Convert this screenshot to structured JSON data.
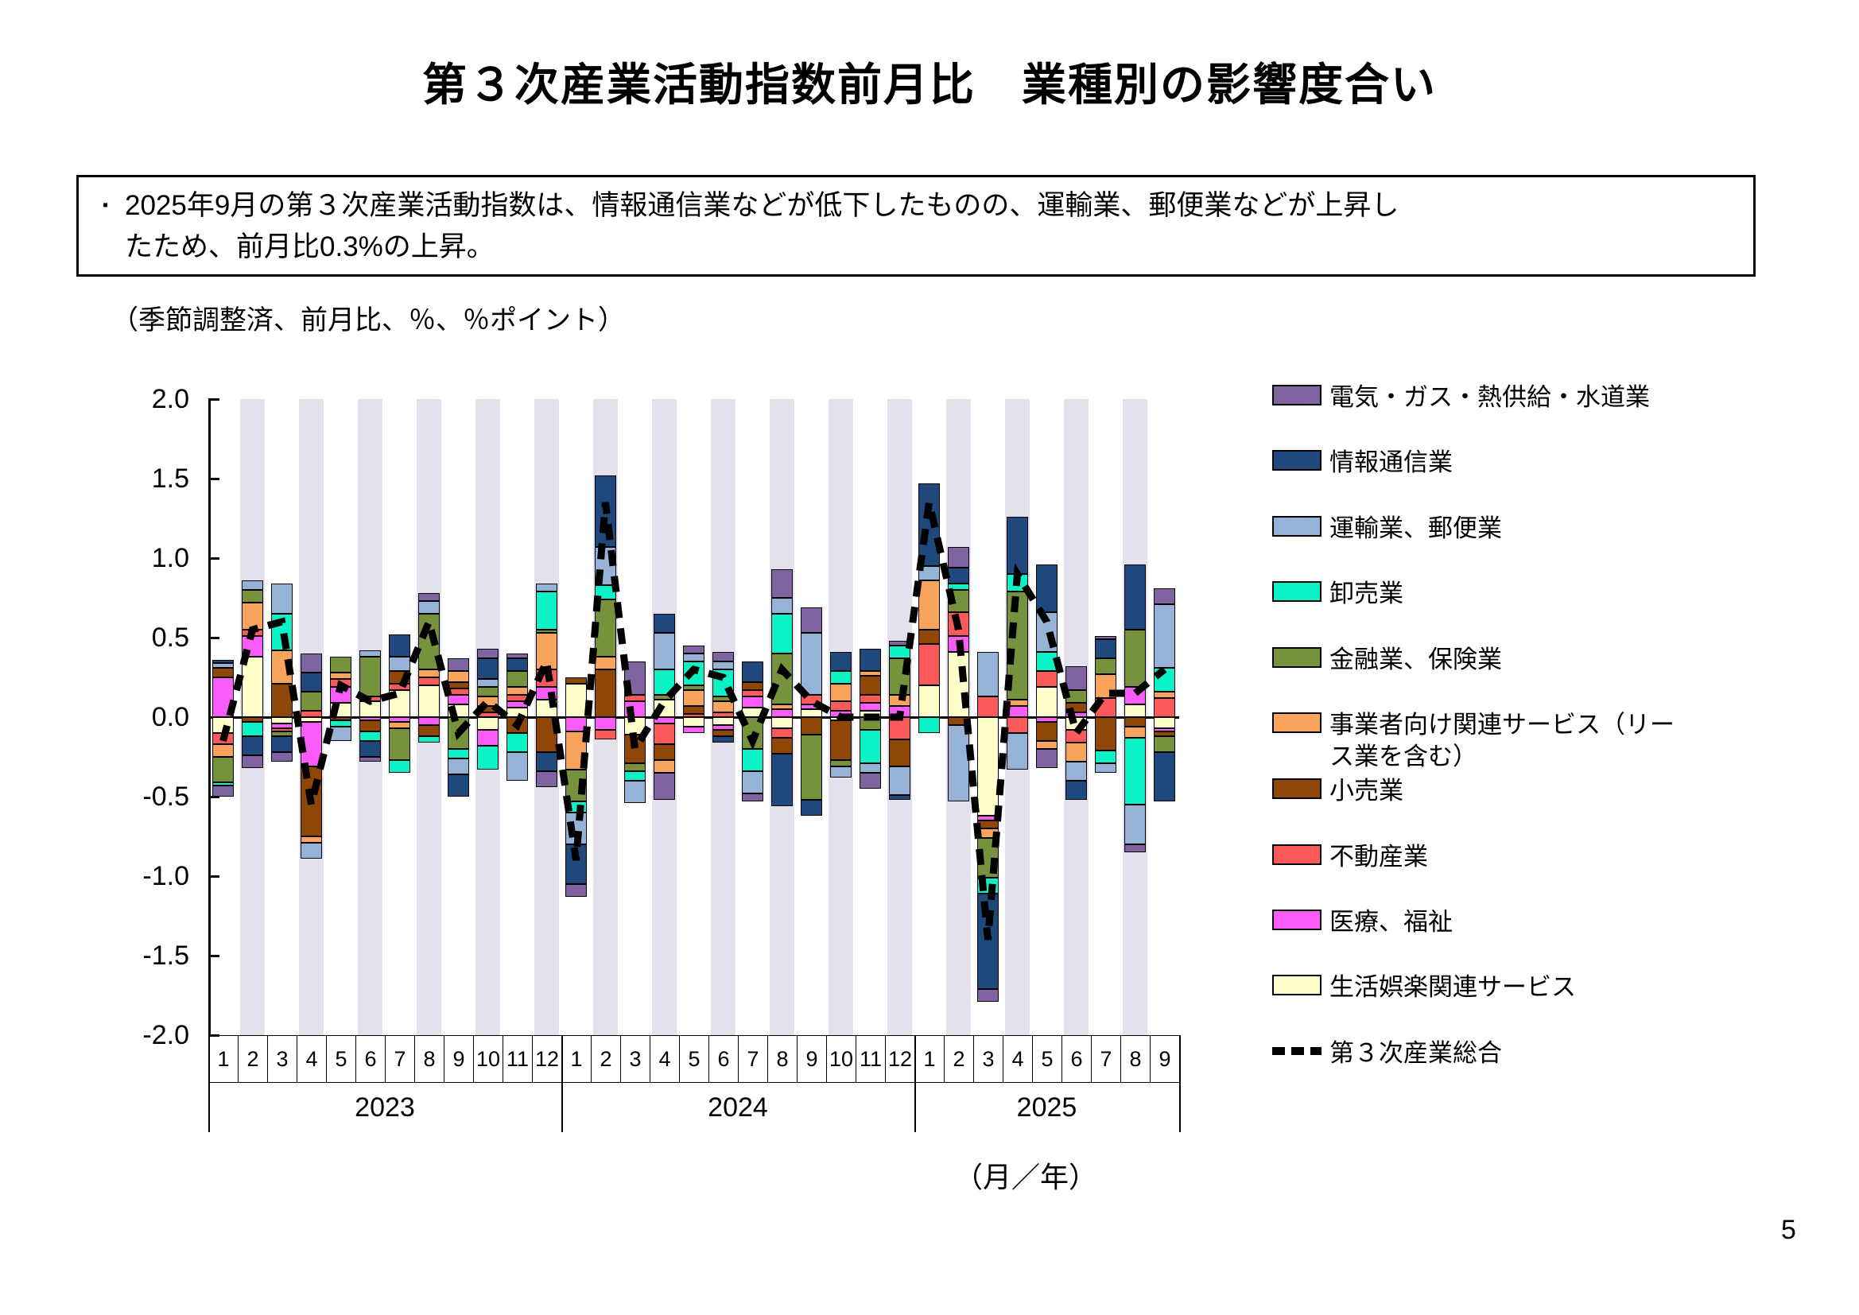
{
  "page": {
    "title": "第３次産業活動指数前月比　業種別の影響度合い",
    "summary_bullet": "▪",
    "summary_text": "2025年9月の第３次産業活動指数は、情報通信業などが低下したものの、運輸業、郵便業などが上昇し\nたため、前月比0.3%の上昇。",
    "axis_note": "（季節調整済、前月比、％、％ポイント）",
    "unit_label": "（月／年）",
    "page_number": "5"
  },
  "chart_data": {
    "type": "bar",
    "subtype": "stacked-bar-with-dashed-total-line",
    "ylabel": "％ポイント",
    "ylim": [
      -2.0,
      2.0
    ],
    "ytick_labels": [
      "2.0",
      "1.5",
      "1.0",
      "0.5",
      "0.0",
      "-0.5",
      "-1.0",
      "-1.5",
      "-2.0"
    ],
    "grid": false,
    "legend_position": "right",
    "stripe_color": "#E4E1ED",
    "months": [
      "1",
      "2",
      "3",
      "4",
      "5",
      "6",
      "7",
      "8",
      "9",
      "10",
      "11",
      "12",
      "1",
      "2",
      "3",
      "4",
      "5",
      "6",
      "7",
      "8",
      "9",
      "10",
      "11",
      "12",
      "1",
      "2",
      "3",
      "4",
      "5",
      "6",
      "7",
      "8",
      "9"
    ],
    "years": [
      {
        "label": "2023",
        "start": 0,
        "count": 12
      },
      {
        "label": "2024",
        "start": 12,
        "count": 12
      },
      {
        "label": "2025",
        "start": 24,
        "count": 9
      }
    ],
    "series": [
      {
        "key": "elec",
        "name": "電気・ガス・熱供給・水道業",
        "color": "#8064A2",
        "values": [
          -0.07,
          -0.08,
          -0.06,
          0.12,
          0.0,
          -0.03,
          0.0,
          0.05,
          0.08,
          0.06,
          0.03,
          -0.1,
          -0.08,
          0.0,
          0.21,
          -0.17,
          0.05,
          0.06,
          -0.05,
          0.18,
          0.16,
          0.0,
          -0.1,
          0.03,
          0.0,
          0.13,
          -0.08,
          0.0,
          -0.12,
          0.15,
          0.02,
          -0.05,
          0.1
        ]
      },
      {
        "key": "info",
        "name": "情報通信業",
        "color": "#1F497D",
        "values": [
          0.02,
          -0.12,
          -0.1,
          0.12,
          0.0,
          -0.1,
          0.14,
          0.0,
          -0.14,
          0.13,
          0.08,
          -0.12,
          -0.25,
          0.45,
          0.0,
          0.12,
          0.0,
          -0.04,
          0.13,
          -0.33,
          -0.1,
          0.12,
          0.14,
          -0.03,
          0.52,
          0.1,
          -0.6,
          0.36,
          0.3,
          -0.12,
          0.12,
          0.41,
          -0.31
        ]
      },
      {
        "key": "trans",
        "name": "運輸業、郵便業",
        "color": "#95B3D7",
        "values": [
          0.03,
          0.06,
          0.19,
          -0.1,
          -0.09,
          0.04,
          0.09,
          0.08,
          -0.1,
          0.05,
          -0.18,
          0.05,
          -0.2,
          0.24,
          -0.14,
          0.23,
          0.05,
          0.05,
          -0.14,
          0.1,
          0.39,
          -0.07,
          -0.06,
          -0.18,
          0.09,
          -0.48,
          0.28,
          -0.23,
          0.25,
          -0.12,
          -0.06,
          -0.25,
          0.4
        ]
      },
      {
        "key": "whole",
        "name": "卸売業",
        "color": "#0BF2C6",
        "values": [
          -0.02,
          -0.09,
          0.23,
          0.0,
          -0.04,
          -0.06,
          -0.08,
          -0.04,
          -0.06,
          -0.15,
          -0.12,
          0.24,
          -0.07,
          0.09,
          -0.06,
          0.16,
          0.15,
          0.17,
          -0.14,
          0.25,
          0.0,
          0.08,
          -0.21,
          0.08,
          -0.1,
          0.04,
          -0.1,
          0.11,
          0.12,
          0.0,
          -0.08,
          -0.42,
          0.15
        ]
      },
      {
        "key": "fin",
        "name": "金融業、保険業",
        "color": "#76923C",
        "values": [
          -0.16,
          0.08,
          -0.03,
          0.12,
          0.1,
          0.25,
          -0.2,
          0.35,
          -0.2,
          0.06,
          0.1,
          0.02,
          -0.2,
          0.36,
          -0.05,
          0.03,
          0.03,
          0.03,
          -0.2,
          0.32,
          -0.41,
          -0.04,
          -0.08,
          0.23,
          0.0,
          0.14,
          -0.25,
          0.68,
          0.0,
          0.08,
          0.1,
          0.36,
          -0.1
        ]
      },
      {
        "key": "biz",
        "name": "事業者向け関連サービス（リース業を含む）",
        "name_lines": [
          "事業者向け関連サービス（リー",
          "ス業を含む）"
        ],
        "color": "#F8A45D",
        "values": [
          -0.08,
          0.17,
          0.21,
          -0.04,
          0.04,
          0.0,
          -0.04,
          0.05,
          0.07,
          0.06,
          0.05,
          0.23,
          -0.24,
          0.08,
          0.0,
          -0.08,
          0.1,
          0.07,
          0.0,
          0.03,
          0.0,
          0.11,
          0.03,
          0.07,
          0.31,
          0.0,
          -0.06,
          0.04,
          -0.05,
          -0.12,
          0.15,
          -0.07,
          0.04
        ]
      },
      {
        "key": "retail",
        "name": "小売業",
        "color": "#8F4708",
        "values": [
          0.06,
          -0.03,
          0.21,
          -0.44,
          -0.02,
          -0.07,
          0.08,
          -0.07,
          0.04,
          0.04,
          -0.1,
          -0.22,
          0.04,
          0.3,
          -0.18,
          -0.1,
          0.05,
          -0.04,
          0.05,
          -0.1,
          -0.11,
          -0.25,
          0.12,
          -0.17,
          0.09,
          -0.05,
          -0.05,
          0.0,
          -0.12,
          0.06,
          -0.21,
          -0.06,
          -0.03
        ]
      },
      {
        "key": "estate",
        "name": "不動産業",
        "color": "#FC5A5A",
        "values": [
          -0.07,
          0.04,
          -0.02,
          0.04,
          0.05,
          0.03,
          0.04,
          0.05,
          0.04,
          0.03,
          0.04,
          0.11,
          0.0,
          -0.06,
          0.04,
          -0.13,
          0.02,
          0.03,
          0.04,
          -0.06,
          0.06,
          0.06,
          0.05,
          -0.14,
          0.26,
          0.15,
          0.13,
          -0.1,
          0.1,
          -0.08,
          0.12,
          0.0,
          0.12
        ]
      },
      {
        "key": "med",
        "name": "医療、福祉",
        "color": "#F95CF9",
        "values": [
          0.25,
          0.13,
          -0.03,
          -0.28,
          0.1,
          -0.02,
          -0.03,
          -0.05,
          0.06,
          -0.1,
          0.04,
          0.08,
          -0.09,
          -0.08,
          0.1,
          -0.04,
          -0.04,
          -0.03,
          0.07,
          0.05,
          0.03,
          0.04,
          0.05,
          0.07,
          0.0,
          0.1,
          -0.03,
          0.07,
          -0.03,
          0.03,
          0.0,
          0.11,
          -0.02
        ]
      },
      {
        "key": "life",
        "name": "生活娯楽関連サービス",
        "color": "#FFFFCC",
        "values": [
          -0.1,
          0.38,
          -0.04,
          -0.03,
          0.09,
          0.1,
          0.17,
          0.2,
          0.08,
          -0.08,
          0.06,
          0.11,
          0.21,
          0.0,
          -0.11,
          0.11,
          -0.06,
          -0.05,
          0.06,
          -0.07,
          0.05,
          -0.02,
          0.04,
          0.0,
          0.2,
          0.41,
          -0.62,
          0.0,
          0.19,
          -0.08,
          0.0,
          0.08,
          -0.07
        ]
      }
    ],
    "total_line": {
      "name": "第３次産業総合",
      "style": "dashed",
      "color": "#000000",
      "values": [
        -0.15,
        0.55,
        0.6,
        -0.55,
        0.2,
        0.1,
        0.15,
        0.6,
        -0.1,
        0.1,
        -0.05,
        0.35,
        -0.9,
        1.35,
        -0.2,
        0.1,
        0.3,
        0.25,
        -0.15,
        0.3,
        0.1,
        0.0,
        0.0,
        0.0,
        1.35,
        0.55,
        -1.4,
        0.9,
        0.6,
        -0.1,
        0.15,
        0.15,
        0.3
      ]
    }
  }
}
